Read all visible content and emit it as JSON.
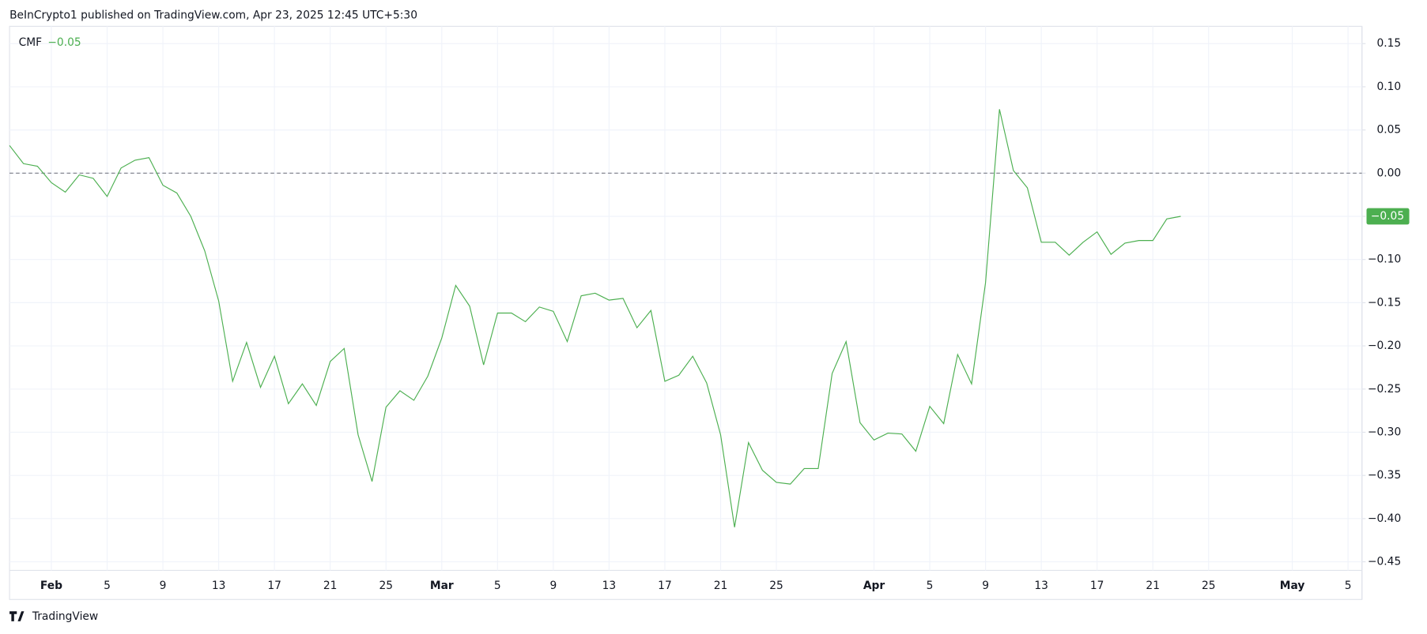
{
  "header": "BeInCrypto1 published on TradingView.com, Apr 23, 2025 12:45 UTC+5:30",
  "footer": "TradingView",
  "chart_data": {
    "type": "line",
    "legend_name": "CMF",
    "legend_value": "−0.05",
    "last_value_label": "−0.05",
    "baseline": 0,
    "grid": true,
    "series": [
      {
        "name": "CMF",
        "color": "#4caf50",
        "values": [
          0.032,
          0.011,
          0.008,
          -0.011,
          -0.022,
          -0.002,
          -0.006,
          -0.027,
          0.006,
          0.015,
          0.018,
          -0.014,
          -0.023,
          -0.05,
          -0.09,
          -0.148,
          -0.241,
          -0.196,
          -0.248,
          -0.212,
          -0.267,
          -0.244,
          -0.269,
          -0.218,
          -0.203,
          -0.303,
          -0.357,
          -0.271,
          -0.252,
          -0.263,
          -0.235,
          -0.191,
          -0.13,
          -0.154,
          -0.222,
          -0.162,
          -0.162,
          -0.172,
          -0.155,
          -0.16,
          -0.195,
          -0.142,
          -0.139,
          -0.147,
          -0.145,
          -0.179,
          -0.159,
          -0.241,
          -0.234,
          -0.212,
          -0.243,
          -0.303,
          -0.41,
          -0.312,
          -0.344,
          -0.358,
          -0.36,
          -0.342,
          -0.342,
          -0.232,
          -0.195,
          -0.289,
          -0.309,
          -0.301,
          -0.302,
          -0.322,
          -0.27,
          -0.29,
          -0.21,
          -0.244,
          -0.127,
          0.074,
          0.003,
          -0.017,
          -0.08,
          -0.08,
          -0.095,
          -0.08,
          -0.068,
          -0.094,
          -0.081,
          -0.078,
          -0.078,
          -0.053,
          -0.05
        ]
      }
    ],
    "x": [
      "2025-01-29",
      "2025-01-30",
      "2025-01-31",
      "2025-02-01",
      "2025-02-02",
      "2025-02-03",
      "2025-02-04",
      "2025-02-05",
      "2025-02-06",
      "2025-02-07",
      "2025-02-08",
      "2025-02-09",
      "2025-02-10",
      "2025-02-11",
      "2025-02-12",
      "2025-02-13",
      "2025-02-14",
      "2025-02-15",
      "2025-02-16",
      "2025-02-17",
      "2025-02-18",
      "2025-02-19",
      "2025-02-20",
      "2025-02-21",
      "2025-02-22",
      "2025-02-23",
      "2025-02-24",
      "2025-02-25",
      "2025-02-26",
      "2025-02-27",
      "2025-02-28",
      "2025-03-01",
      "2025-03-02",
      "2025-03-03",
      "2025-03-04",
      "2025-03-05",
      "2025-03-06",
      "2025-03-07",
      "2025-03-08",
      "2025-03-09",
      "2025-03-10",
      "2025-03-11",
      "2025-03-12",
      "2025-03-13",
      "2025-03-14",
      "2025-03-15",
      "2025-03-16",
      "2025-03-17",
      "2025-03-18",
      "2025-03-19",
      "2025-03-20",
      "2025-03-21",
      "2025-03-22",
      "2025-03-23",
      "2025-03-24",
      "2025-03-25",
      "2025-03-26",
      "2025-03-27",
      "2025-03-28",
      "2025-03-29",
      "2025-03-30",
      "2025-03-31",
      "2025-04-01",
      "2025-04-02",
      "2025-04-03",
      "2025-04-04",
      "2025-04-05",
      "2025-04-06",
      "2025-04-07",
      "2025-04-08",
      "2025-04-09",
      "2025-04-10",
      "2025-04-11",
      "2025-04-12",
      "2025-04-13",
      "2025-04-14",
      "2025-04-15",
      "2025-04-16",
      "2025-04-17",
      "2025-04-18",
      "2025-04-19",
      "2025-04-20",
      "2025-04-21",
      "2025-04-22",
      "2025-04-23"
    ],
    "xlim": [
      "2025-01-29",
      "2025-05-06"
    ],
    "xticks": [
      {
        "value": "2025-02-01",
        "label": "Feb"
      },
      {
        "value": "2025-02-05",
        "label": "5"
      },
      {
        "value": "2025-02-09",
        "label": "9"
      },
      {
        "value": "2025-02-13",
        "label": "13"
      },
      {
        "value": "2025-02-17",
        "label": "17"
      },
      {
        "value": "2025-02-21",
        "label": "21"
      },
      {
        "value": "2025-02-25",
        "label": "25"
      },
      {
        "value": "2025-03-01",
        "label": "Mar"
      },
      {
        "value": "2025-03-05",
        "label": "5"
      },
      {
        "value": "2025-03-09",
        "label": "9"
      },
      {
        "value": "2025-03-13",
        "label": "13"
      },
      {
        "value": "2025-03-17",
        "label": "17"
      },
      {
        "value": "2025-03-21",
        "label": "21"
      },
      {
        "value": "2025-03-25",
        "label": "25"
      },
      {
        "value": "2025-04-01",
        "label": "Apr"
      },
      {
        "value": "2025-04-05",
        "label": "5"
      },
      {
        "value": "2025-04-09",
        "label": "9"
      },
      {
        "value": "2025-04-13",
        "label": "13"
      },
      {
        "value": "2025-04-17",
        "label": "17"
      },
      {
        "value": "2025-04-21",
        "label": "21"
      },
      {
        "value": "2025-04-25",
        "label": "25"
      },
      {
        "value": "2025-05-01",
        "label": "May"
      },
      {
        "value": "2025-05-05",
        "label": "5"
      }
    ],
    "ylim": [
      -0.46,
      0.17
    ],
    "yticks": [
      0.15,
      {
        "value": 0.1,
        "label": "0.10"
      },
      0.05,
      {
        "value": 0,
        "label": "0.00"
      },
      {
        "value": -0.05,
        "label": "−0.05"
      },
      {
        "value": -0.1,
        "label": "−0.10"
      },
      {
        "value": -0.15,
        "label": "−0.15"
      },
      {
        "value": -0.2,
        "label": "−0.20"
      },
      {
        "value": -0.25,
        "label": "−0.25"
      },
      {
        "value": -0.3,
        "label": "−0.30"
      },
      {
        "value": -0.35,
        "label": "−0.35"
      },
      {
        "value": -0.4,
        "label": "−0.40"
      },
      {
        "value": -0.45,
        "label": "−0.45"
      }
    ]
  }
}
